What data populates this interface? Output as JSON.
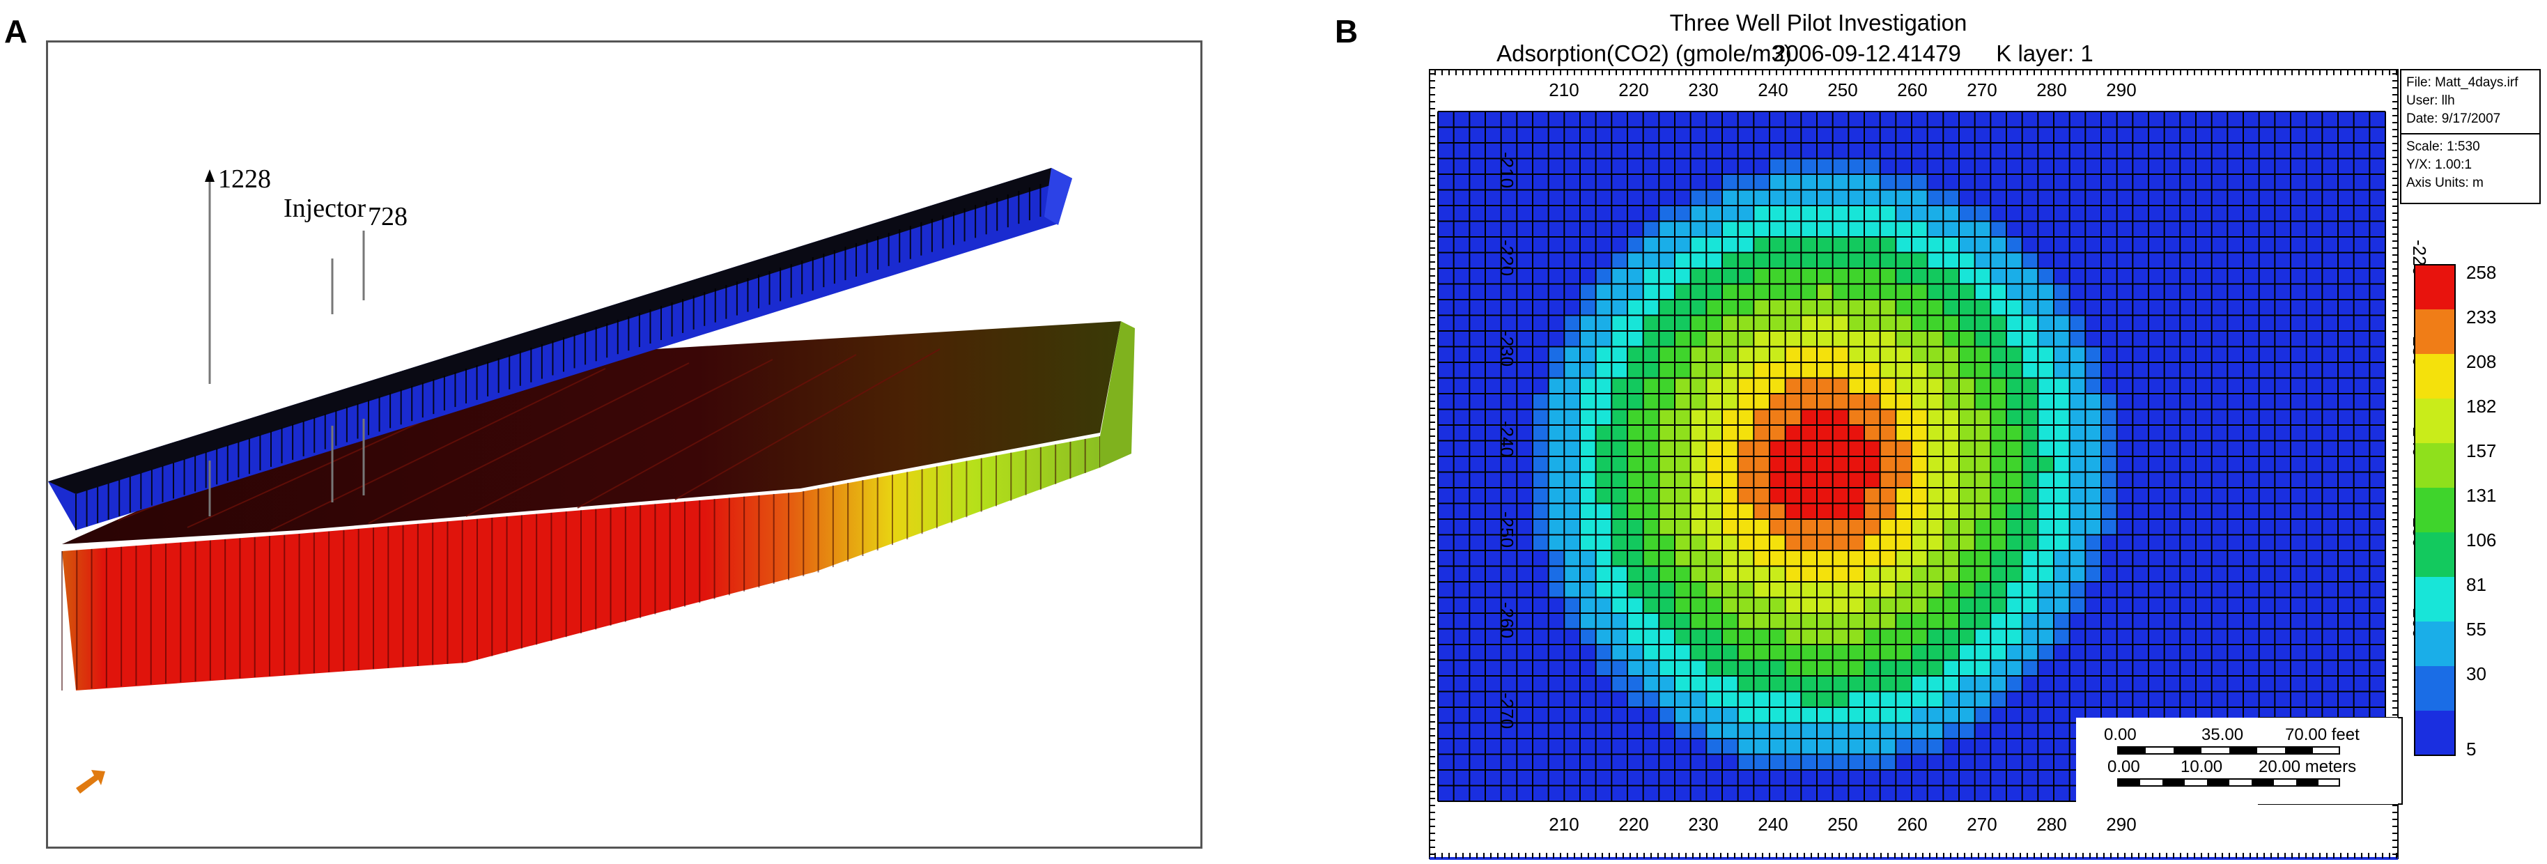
{
  "panels": {
    "a": {
      "letter": "A",
      "wells": {
        "w1228": "1228",
        "injector": "Injector",
        "w728": "728"
      },
      "colors": {
        "top_layer": "#1c2fd8",
        "bottom_layer_main": "#e0140c"
      }
    },
    "b": {
      "letter": "B",
      "title": "Three Well Pilot Investigation",
      "subtitle": {
        "property": "Adsorption(CO2) (gmole/m3)",
        "date": "2006-09-12.41479",
        "layer": "K layer: 1"
      },
      "info_box": {
        "file": "File: Matt_4days.irf",
        "user": "User: llh",
        "date": "Date: 9/17/2007",
        "scale": "Scale: 1:530",
        "yx": "Y/X: 1.00:1",
        "axis_units": "Axis Units: m"
      },
      "x_axis_ticks": [
        "210",
        "220",
        "230",
        "240",
        "250",
        "260",
        "270",
        "280",
        "290"
      ],
      "y_axis_ticks": [
        "-210",
        "-220",
        "-230",
        "-240",
        "-250",
        "-260",
        "-270"
      ],
      "colorbar": {
        "labels": [
          "258",
          "233",
          "208",
          "182",
          "157",
          "131",
          "106",
          "81",
          "55",
          "30",
          "5"
        ],
        "colors": [
          "#e8130d",
          "#f07d17",
          "#f4e10c",
          "#c9ec1a",
          "#8fe01c",
          "#3fd42c",
          "#13c95e",
          "#18e5d8",
          "#1aaee8",
          "#1a6de6",
          "#1a2fe0"
        ]
      },
      "scalebar": {
        "feet": [
          "0.00",
          "35.00",
          "70.00 feet"
        ],
        "meters": [
          "0.00",
          "10.00",
          "20.00 meters"
        ]
      }
    }
  }
}
